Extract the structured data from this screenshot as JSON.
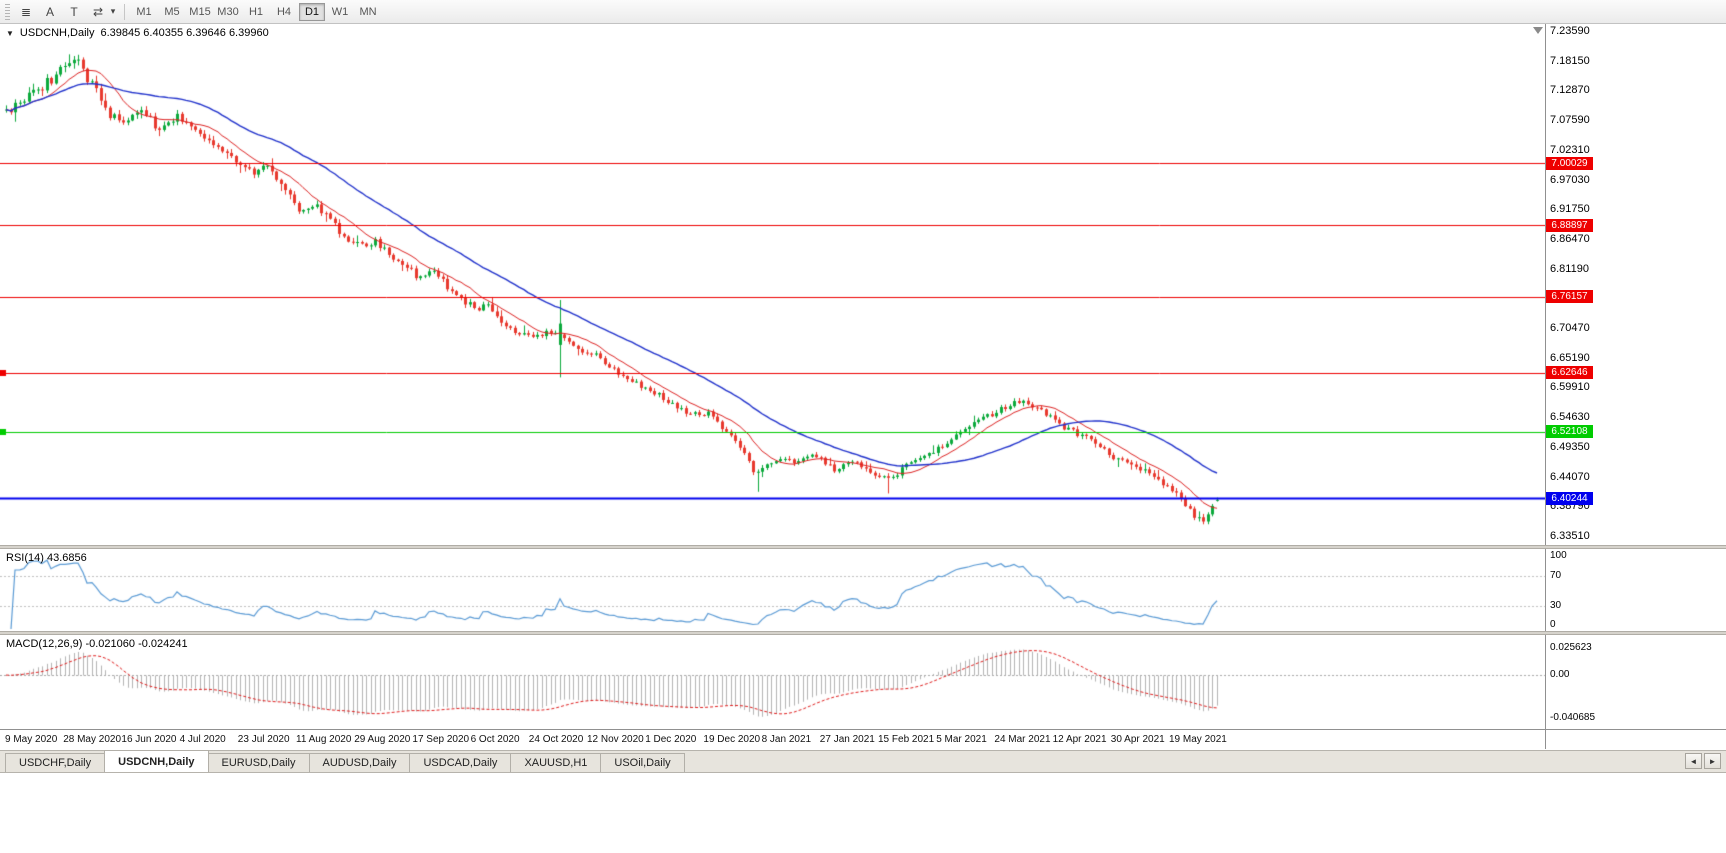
{
  "toolbar": {
    "icons": [
      {
        "name": "chart-list-icon",
        "glyph": "≣"
      },
      {
        "name": "annotation-a-icon",
        "glyph": "A"
      },
      {
        "name": "text-label-icon",
        "glyph": "T"
      },
      {
        "name": "cycle-symbols-icon",
        "glyph": "⇄"
      },
      {
        "name": "toolbar-dropdown-icon",
        "glyph": "▾",
        "small": true
      }
    ],
    "timeframes": [
      {
        "label": "M1"
      },
      {
        "label": "M5"
      },
      {
        "label": "M15"
      },
      {
        "label": "M30"
      },
      {
        "label": "H1"
      },
      {
        "label": "H4"
      },
      {
        "label": "D1",
        "active": true
      },
      {
        "label": "W1"
      },
      {
        "label": "MN"
      }
    ]
  },
  "chart": {
    "one_click_glyph": "▼",
    "symbol": "USDCNH,Daily",
    "ohlc_text": "6.39845 6.40355 6.39646 6.39960",
    "price_max": 7.2359,
    "price_min": 6.3351,
    "y_axis_labels": [
      "7.23590",
      "7.18150",
      "7.12870",
      "7.07590",
      "7.02310",
      "6.97030",
      "6.91750",
      "6.86470",
      "6.81190",
      "6.75910",
      "6.70470",
      "6.65190",
      "6.59910",
      "6.54630",
      "6.49350",
      "6.44070",
      "6.38790",
      "6.33510"
    ],
    "h_lines": [
      {
        "value": 7.00029,
        "label": "7.00029",
        "color": "#ee0000",
        "width": 1,
        "marker": false
      },
      {
        "value": 6.88897,
        "label": "6.88897",
        "color": "#ee0000",
        "width": 1,
        "marker": false
      },
      {
        "value": 6.76157,
        "label": "6.76157",
        "color": "#ee0000",
        "width": 1,
        "marker": false
      },
      {
        "value": 6.62646,
        "label": "6.62646",
        "color": "#ee0000",
        "width": 1,
        "marker": true
      },
      {
        "value": 6.52108,
        "label": "6.52108",
        "color": "#00cc00",
        "width": 1,
        "marker": true
      },
      {
        "value": 6.40244,
        "label": "6.40244",
        "color": "#0000ee",
        "width": 2,
        "marker": false
      }
    ],
    "x_axis_dates": [
      "9 May 2020",
      "28 May 2020",
      "16 Jun 2020",
      "4 Jul 2020",
      "23 Jul 2020",
      "11 Aug 2020",
      "29 Aug 2020",
      "17 Sep 2020",
      "6 Oct 2020",
      "24 Oct 2020",
      "12 Nov 2020",
      "1 Dec 2020",
      "19 Dec 2020",
      "8 Jan 2021",
      "27 Jan 2021",
      "15 Feb 2021",
      "5 Mar 2021",
      "24 Mar 2021",
      "12 Apr 2021",
      "30 Apr 2021",
      "19 May 2021"
    ],
    "colors": {
      "up": "#0caa3c",
      "down": "#e8392e",
      "ma_fast": "#dd2222",
      "ma_slow": "#2233cc",
      "background": "#ffffff",
      "axis_text": "#000000"
    }
  },
  "rsi": {
    "label": "RSI(14) 43.6856",
    "period": 14,
    "value": 43.6856,
    "axis_labels": [
      "100",
      "70",
      "30",
      "0"
    ],
    "levels": [
      70,
      30
    ],
    "color": "#5b9bd5",
    "level_color": "#c0c0c0"
  },
  "macd": {
    "label": "MACD(12,26,9) -0.021060 -0.024241",
    "macd_value": -0.02106,
    "signal_value": -0.024241,
    "axis_labels": [
      "0.025623",
      "0.00",
      "-0.040685"
    ],
    "range": [
      -0.040685,
      0.025623
    ],
    "histogram_color": "#b4b4b4",
    "signal_color": "#e02020",
    "zero_color": "#a8a8a8"
  },
  "tabs": {
    "items": [
      {
        "label": "USDCHF,Daily"
      },
      {
        "label": "USDCNH,Daily",
        "active": true
      },
      {
        "label": "EURUSD,Daily"
      },
      {
        "label": "AUDUSD,Daily"
      },
      {
        "label": "USDCAD,Daily"
      },
      {
        "label": "XAUUSD,H1"
      },
      {
        "label": "USOil,Daily"
      }
    ],
    "scroll_left_glyph": "◄",
    "scroll_right_glyph": "►"
  },
  "chart_data": {
    "type": "candlestick",
    "symbol": "USDCNH",
    "timeframe": "Daily",
    "title": "USDCNH,Daily",
    "x_range": [
      "9 May 2020",
      "28 May 2021"
    ],
    "y_range": [
      6.3351,
      7.2359
    ],
    "num_candles": 270,
    "last_candle": {
      "open": 6.39845,
      "high": 6.40355,
      "low": 6.39646,
      "close": 6.3996
    },
    "horizontal_levels": [
      7.00029,
      6.88897,
      6.76157,
      6.62646,
      6.52108,
      6.40244
    ],
    "indicators": [
      {
        "name": "MA fast",
        "color": "red"
      },
      {
        "name": "MA slow",
        "color": "blue"
      },
      {
        "name": "RSI",
        "period": 14,
        "last_value": 43.6856
      },
      {
        "name": "MACD",
        "params": [
          12,
          26,
          9
        ],
        "macd": -0.02106,
        "signal": -0.024241
      }
    ],
    "price_path": [
      [
        0.0,
        7.09
      ],
      [
        0.018,
        7.118
      ],
      [
        0.04,
        7.155
      ],
      [
        0.055,
        7.192
      ],
      [
        0.068,
        7.15
      ],
      [
        0.082,
        7.095
      ],
      [
        0.095,
        7.07
      ],
      [
        0.11,
        7.098
      ],
      [
        0.125,
        7.062
      ],
      [
        0.142,
        7.082
      ],
      [
        0.158,
        7.058
      ],
      [
        0.175,
        7.03
      ],
      [
        0.194,
        7.0
      ],
      [
        0.205,
        6.984
      ],
      [
        0.217,
        6.998
      ],
      [
        0.23,
        6.952
      ],
      [
        0.242,
        6.918
      ],
      [
        0.255,
        6.93
      ],
      [
        0.268,
        6.895
      ],
      [
        0.28,
        6.87
      ],
      [
        0.292,
        6.852
      ],
      [
        0.304,
        6.862
      ],
      [
        0.316,
        6.838
      ],
      [
        0.33,
        6.815
      ],
      [
        0.34,
        6.798
      ],
      [
        0.352,
        6.808
      ],
      [
        0.365,
        6.778
      ],
      [
        0.378,
        6.755
      ],
      [
        0.388,
        6.74
      ],
      [
        0.398,
        6.75
      ],
      [
        0.41,
        6.718
      ],
      [
        0.422,
        6.698
      ],
      [
        0.434,
        6.688
      ],
      [
        0.446,
        6.7
      ],
      [
        0.458,
        6.692
      ],
      [
        0.47,
        6.67
      ],
      [
        0.483,
        6.663
      ],
      [
        0.495,
        6.642
      ],
      [
        0.508,
        6.622
      ],
      [
        0.52,
        6.606
      ],
      [
        0.53,
        6.596
      ],
      [
        0.542,
        6.584
      ],
      [
        0.554,
        6.566
      ],
      [
        0.566,
        6.55
      ],
      [
        0.578,
        6.556
      ],
      [
        0.59,
        6.532
      ],
      [
        0.602,
        6.505
      ],
      [
        0.612,
        6.47
      ],
      [
        0.619,
        6.446
      ],
      [
        0.63,
        6.462
      ],
      [
        0.642,
        6.478
      ],
      [
        0.654,
        6.466
      ],
      [
        0.666,
        6.482
      ],
      [
        0.674,
        6.468
      ],
      [
        0.685,
        6.452
      ],
      [
        0.696,
        6.47
      ],
      [
        0.707,
        6.46
      ],
      [
        0.718,
        6.446
      ],
      [
        0.729,
        6.434
      ],
      [
        0.741,
        6.456
      ],
      [
        0.753,
        6.47
      ],
      [
        0.763,
        6.484
      ],
      [
        0.772,
        6.496
      ],
      [
        0.784,
        6.514
      ],
      [
        0.796,
        6.53
      ],
      [
        0.808,
        6.546
      ],
      [
        0.819,
        6.56
      ],
      [
        0.83,
        6.57
      ],
      [
        0.841,
        6.578
      ],
      [
        0.852,
        6.564
      ],
      [
        0.863,
        6.544
      ],
      [
        0.874,
        6.53
      ],
      [
        0.886,
        6.516
      ],
      [
        0.897,
        6.502
      ],
      [
        0.908,
        6.486
      ],
      [
        0.919,
        6.47
      ],
      [
        0.93,
        6.46
      ],
      [
        0.941,
        6.45
      ],
      [
        0.951,
        6.436
      ],
      [
        0.961,
        6.42
      ],
      [
        0.971,
        6.398
      ],
      [
        0.981,
        6.374
      ],
      [
        0.987,
        6.36
      ],
      [
        0.993,
        6.38
      ],
      [
        1.0,
        6.3996
      ]
    ],
    "event_spike": {
      "fraction": 0.458,
      "open": 6.676,
      "high": 6.756,
      "low": 6.618,
      "close": 6.714
    },
    "dip_wicks": [
      [
        0.619,
        6.414
      ],
      [
        0.729,
        6.411
      ],
      [
        0.987,
        6.356
      ]
    ]
  }
}
